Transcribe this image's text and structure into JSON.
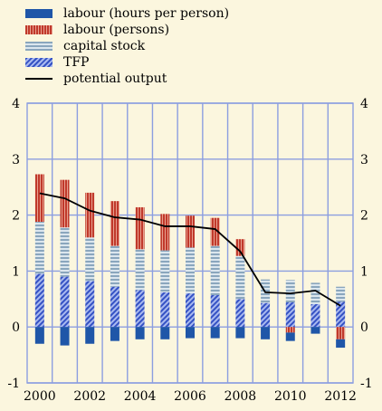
{
  "chart_data": {
    "type": "bar",
    "stacked": true,
    "x": [
      2000,
      2001,
      2002,
      2003,
      2004,
      2005,
      2006,
      2007,
      2008,
      2009,
      2010,
      2011,
      2012
    ],
    "x_tick_labels": [
      "2000",
      "2002",
      "2004",
      "2006",
      "2008",
      "2010",
      "2012"
    ],
    "y_tick_labels": [
      "-1",
      "0",
      "1",
      "2",
      "3",
      "4"
    ],
    "ylim": [
      -1,
      4
    ],
    "grid": true,
    "legend_position": "top-left",
    "series": [
      {
        "name": "labour (hours per person)",
        "kind": "bar",
        "color": "#1f56a8",
        "values": [
          -0.3,
          -0.33,
          -0.3,
          -0.25,
          -0.22,
          -0.22,
          -0.2,
          -0.2,
          -0.2,
          -0.22,
          -0.15,
          -0.12,
          -0.15
        ]
      },
      {
        "name": "labour (persons)",
        "kind": "bar",
        "color": "#c0392b",
        "values": [
          0.85,
          0.85,
          0.8,
          0.8,
          0.75,
          0.65,
          0.57,
          0.5,
          0.3,
          0.0,
          -0.1,
          0.0,
          -0.22
        ]
      },
      {
        "name": "capital stock",
        "kind": "bar",
        "color": "#a9c3d6",
        "values": [
          0.93,
          0.88,
          0.78,
          0.73,
          0.73,
          0.75,
          0.82,
          0.88,
          0.77,
          0.42,
          0.4,
          0.38,
          0.27
        ]
      },
      {
        "name": "TFP",
        "kind": "bar",
        "color": "#4f6fd1",
        "values": [
          0.95,
          0.9,
          0.82,
          0.72,
          0.66,
          0.62,
          0.6,
          0.57,
          0.5,
          0.43,
          0.44,
          0.41,
          0.45
        ]
      },
      {
        "name": "potential output",
        "kind": "line",
        "color": "#000000",
        "values": [
          2.39,
          2.3,
          2.08,
          1.96,
          1.92,
          1.8,
          1.8,
          1.75,
          1.35,
          0.62,
          0.6,
          0.65,
          0.38
        ]
      }
    ]
  }
}
